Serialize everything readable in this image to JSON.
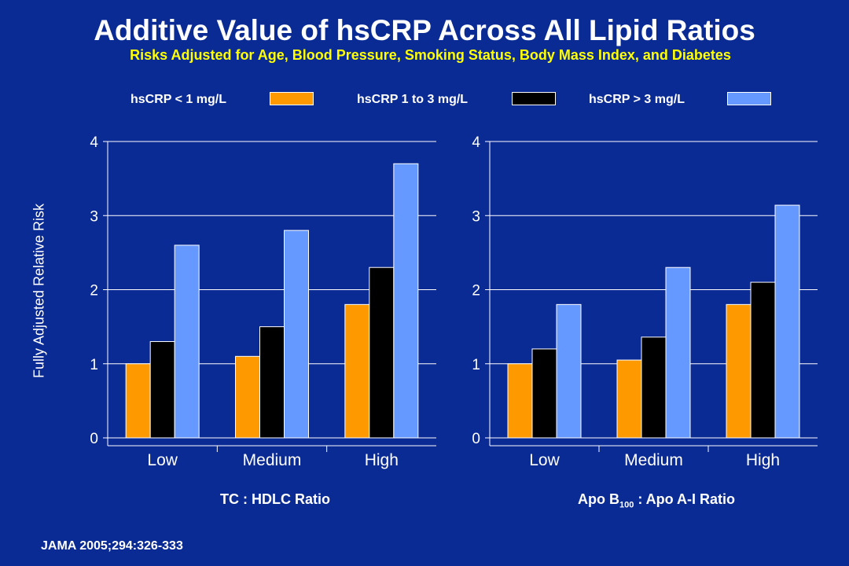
{
  "title": "Additive Value of hsCRP Across All Lipid Ratios",
  "subtitle": "Risks Adjusted for Age, Blood Pressure, Smoking Status, Body Mass Index, and Diabetes",
  "ylabel": "Fully Adjusted Relative Risk",
  "legend": [
    {
      "label": "hsCRP < 1 mg/L",
      "color": "#ff9900"
    },
    {
      "label": "hsCRP 1 to 3 mg/L",
      "color": "#000000"
    },
    {
      "label": "hsCRP > 3 mg/L",
      "color": "#6699ff"
    }
  ],
  "caption_left": "TC : HDLC Ratio",
  "caption_right": {
    "pre": "Apo B",
    "sub": "100",
    "post": " : Apo A-I Ratio"
  },
  "source": "JAMA 2005;294:326-333",
  "chart_data": [
    {
      "type": "bar",
      "title": "TC : HDLC Ratio",
      "categories": [
        "Low",
        "Medium",
        "High"
      ],
      "series": [
        {
          "name": "hsCRP < 1 mg/L",
          "color": "#ff9900",
          "values": [
            1.0,
            1.1,
            1.8
          ]
        },
        {
          "name": "hsCRP 1 to 3 mg/L",
          "color": "#000000",
          "values": [
            1.3,
            1.5,
            2.3
          ]
        },
        {
          "name": "hsCRP > 3 mg/L",
          "color": "#6699ff",
          "values": [
            2.6,
            2.8,
            3.7
          ]
        }
      ],
      "ylabel": "Fully Adjusted Relative Risk",
      "ylim": [
        0,
        4
      ],
      "yticks": [
        "0",
        "1",
        "2",
        "3",
        "4"
      ],
      "grid": true
    },
    {
      "type": "bar",
      "title": "Apo B100 : Apo A-I Ratio",
      "categories": [
        "Low",
        "Medium",
        "High"
      ],
      "series": [
        {
          "name": "hsCRP < 1 mg/L",
          "color": "#ff9900",
          "values": [
            1.0,
            1.05,
            1.8
          ]
        },
        {
          "name": "hsCRP 1 to 3 mg/L",
          "color": "#000000",
          "values": [
            1.2,
            1.36,
            2.1
          ]
        },
        {
          "name": "hsCRP > 3 mg/L",
          "color": "#6699ff",
          "values": [
            1.8,
            2.3,
            3.14
          ]
        }
      ],
      "ylim": [
        0,
        4
      ],
      "yticks": [
        "0",
        "1",
        "2",
        "3",
        "4"
      ],
      "grid": true
    }
  ]
}
